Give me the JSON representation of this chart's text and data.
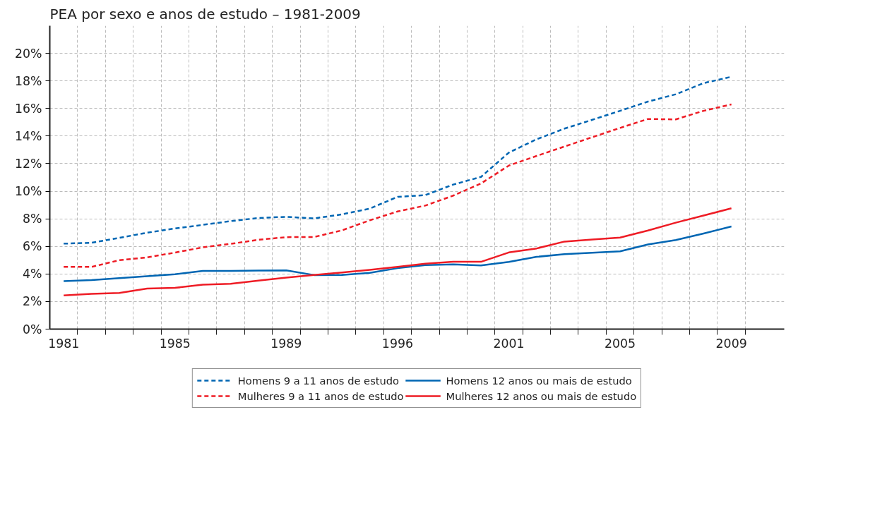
{
  "chart_data": {
    "type": "line",
    "title": "PEA por sexo e anos de estudo – 1981-2009",
    "categories": [
      "1981",
      null,
      null,
      null,
      "1985",
      null,
      null,
      null,
      "1989",
      null,
      null,
      null,
      "1996",
      null,
      null,
      null,
      "2001",
      null,
      null,
      null,
      "2005",
      null,
      null,
      null,
      "2009"
    ],
    "ylim": [
      0,
      22
    ],
    "yticks": [
      {
        "value": 0,
        "label": "0%"
      },
      {
        "value": 2,
        "label": "2%"
      },
      {
        "value": 4,
        "label": "4%"
      },
      {
        "value": 6,
        "label": "6%"
      },
      {
        "value": 8,
        "label": "8%"
      },
      {
        "value": 10,
        "label": "10%"
      },
      {
        "value": 12,
        "label": "12%"
      },
      {
        "value": 14,
        "label": "14%"
      },
      {
        "value": 16,
        "label": "16%"
      },
      {
        "value": 18,
        "label": "18%"
      },
      {
        "value": 20,
        "label": "20%"
      }
    ],
    "grid": true,
    "legend": "bottom",
    "series": [
      {
        "name": "Homens 9 a 11 anos de estudo",
        "color": "#0066b3",
        "line_style": "dashed",
        "values": [
          6.2,
          6.26,
          6.62,
          6.99,
          7.3,
          7.56,
          7.83,
          8.06,
          8.14,
          8.03,
          8.32,
          8.74,
          9.59,
          9.72,
          10.48,
          11.04,
          12.8,
          13.77,
          14.54,
          15.18,
          15.83,
          16.5,
          17.03,
          17.84,
          18.3
        ]
      },
      {
        "name": "Mulheres 9 a 11 anos de estudo",
        "color": "#ee1c25",
        "line_style": "dashed",
        "values": [
          4.51,
          4.51,
          5.0,
          5.2,
          5.55,
          5.93,
          6.18,
          6.48,
          6.67,
          6.68,
          7.16,
          7.89,
          8.53,
          8.96,
          9.68,
          10.56,
          11.86,
          12.56,
          13.24,
          13.92,
          14.59,
          15.24,
          15.21,
          15.83,
          16.3
        ]
      },
      {
        "name": "Homens 12 anos ou mais de estudo",
        "color": "#0066b3",
        "line_style": "solid",
        "values": [
          3.48,
          3.55,
          3.7,
          3.84,
          3.98,
          4.22,
          4.22,
          4.25,
          4.26,
          3.92,
          3.93,
          4.08,
          4.42,
          4.64,
          4.7,
          4.62,
          4.87,
          5.24,
          5.44,
          5.54,
          5.64,
          6.14,
          6.46,
          6.93,
          7.44
        ]
      },
      {
        "name": "Mulheres 12 anos ou mais de estudo",
        "color": "#ee1c25",
        "line_style": "solid",
        "values": [
          2.44,
          2.56,
          2.62,
          2.94,
          2.99,
          3.22,
          3.29,
          3.52,
          3.73,
          3.93,
          4.11,
          4.3,
          4.52,
          4.74,
          4.88,
          4.88,
          5.56,
          5.85,
          6.35,
          6.5,
          6.64,
          7.15,
          7.72,
          8.24,
          8.76
        ]
      }
    ]
  }
}
